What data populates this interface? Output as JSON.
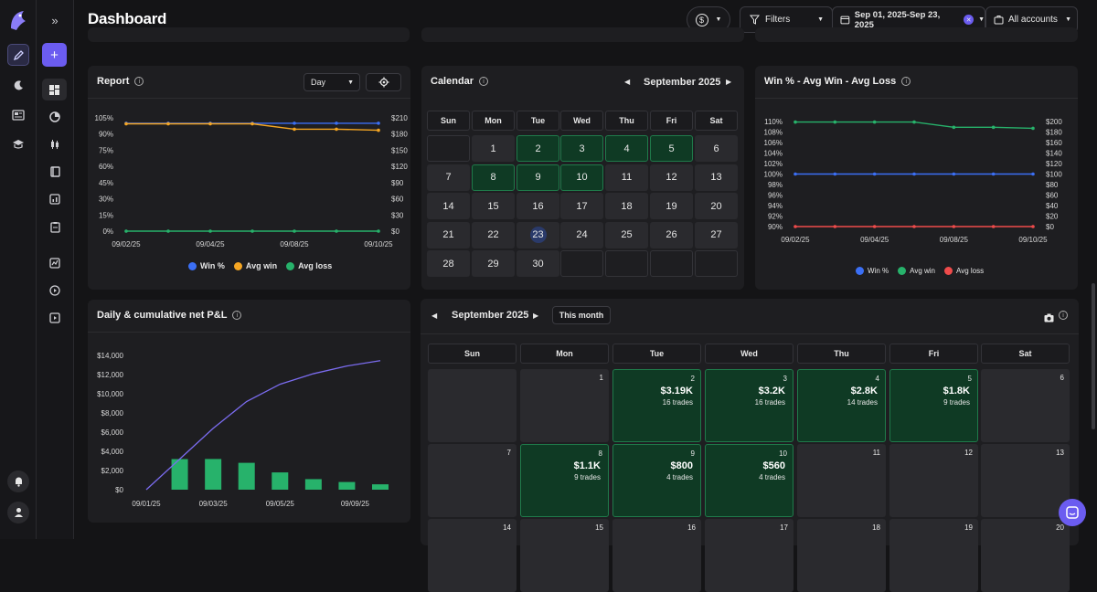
{
  "header": {
    "title": "Dashboard"
  },
  "toolbar": {
    "filters_label": "Filters",
    "date_range": "Sep 01, 2025-Sep 23, 2025",
    "accounts_label": "All accounts"
  },
  "report": {
    "title": "Report",
    "period": "Day",
    "legend": [
      "Win %",
      "Avg win",
      "Avg loss"
    ]
  },
  "calendar_small": {
    "title": "Calendar",
    "month": "September 2025",
    "weekdays": [
      "Sun",
      "Mon",
      "Tue",
      "Wed",
      "Thu",
      "Fri",
      "Sat"
    ],
    "days": [
      "",
      "1",
      "2",
      "3",
      "4",
      "5",
      "6",
      "7",
      "8",
      "9",
      "10",
      "11",
      "12",
      "13",
      "14",
      "15",
      "16",
      "17",
      "18",
      "19",
      "20",
      "21",
      "22",
      "23",
      "24",
      "25",
      "26",
      "27",
      "28",
      "29",
      "30",
      "",
      "",
      "",
      ""
    ],
    "win_days": [
      "2",
      "3",
      "4",
      "5",
      "8",
      "9",
      "10"
    ],
    "today": "23"
  },
  "winrate": {
    "title": "Win % - Avg Win - Avg Loss",
    "legend": [
      "Win %",
      "Avg win",
      "Avg loss"
    ]
  },
  "pnl": {
    "title": "Daily & cumulative net P&L"
  },
  "calendar_big": {
    "month": "September 2025",
    "this_month_label": "This month",
    "weekdays": [
      "Sun",
      "Mon",
      "Tue",
      "Wed",
      "Thu",
      "Fri",
      "Sat"
    ],
    "rows": [
      [
        {
          "d": ""
        },
        {
          "d": "1"
        },
        {
          "d": "2",
          "amt": "$3.19K",
          "tr": "16 trades"
        },
        {
          "d": "3",
          "amt": "$3.2K",
          "tr": "16 trades"
        },
        {
          "d": "4",
          "amt": "$2.8K",
          "tr": "14 trades"
        },
        {
          "d": "5",
          "amt": "$1.8K",
          "tr": "9 trades"
        },
        {
          "d": "6"
        }
      ],
      [
        {
          "d": "7"
        },
        {
          "d": "8",
          "amt": "$1.1K",
          "tr": "9 trades"
        },
        {
          "d": "9",
          "amt": "$800",
          "tr": "4 trades"
        },
        {
          "d": "10",
          "amt": "$560",
          "tr": "4 trades"
        },
        {
          "d": "11"
        },
        {
          "d": "12"
        },
        {
          "d": "13"
        }
      ],
      [
        {
          "d": "14"
        },
        {
          "d": "15"
        },
        {
          "d": "16"
        },
        {
          "d": "17"
        },
        {
          "d": "18"
        },
        {
          "d": "19"
        },
        {
          "d": "20"
        }
      ]
    ]
  },
  "chart_data": [
    {
      "type": "line",
      "title": "Report",
      "x": [
        "09/02/25",
        "09/03/25",
        "09/04/25",
        "09/05/25",
        "09/08/25",
        "09/09/25",
        "09/10/25"
      ],
      "xticks": [
        "09/02/25",
        "09/04/25",
        "09/08/25",
        "09/10/25"
      ],
      "y_left_ticks": [
        "0%",
        "15%",
        "30%",
        "45%",
        "60%",
        "75%",
        "90%",
        "105%"
      ],
      "y_right_ticks": [
        "$0",
        "$30",
        "$60",
        "$90",
        "$120",
        "$150",
        "$180",
        "$210"
      ],
      "ylim_left": [
        0,
        105
      ],
      "ylim_right": [
        0,
        210
      ],
      "series": [
        {
          "name": "Win %",
          "color": "#3b6ff5",
          "axis": "left",
          "values": [
            100,
            100,
            100,
            100,
            100,
            100,
            100
          ]
        },
        {
          "name": "Avg win",
          "color": "#f5a623",
          "axis": "right",
          "values": [
            199,
            199,
            199,
            199,
            189,
            189,
            187
          ]
        },
        {
          "name": "Avg loss",
          "color": "#27b26b",
          "axis": "left",
          "values": [
            0,
            0,
            0,
            0,
            0,
            0,
            0
          ]
        }
      ]
    },
    {
      "type": "line",
      "title": "Win % - Avg Win - Avg Loss",
      "x": [
        "09/02/25",
        "09/03/25",
        "09/04/25",
        "09/05/25",
        "09/08/25",
        "09/09/25",
        "09/10/25"
      ],
      "xticks": [
        "09/02/25",
        "09/04/25",
        "09/08/25",
        "09/10/25"
      ],
      "y_left_ticks": [
        "90%",
        "92%",
        "94%",
        "96%",
        "98%",
        "100%",
        "102%",
        "104%",
        "106%",
        "108%",
        "110%"
      ],
      "y_right_ticks": [
        "$0",
        "$20",
        "$40",
        "$60",
        "$80",
        "$100",
        "$120",
        "$140",
        "$160",
        "$180",
        "$200"
      ],
      "ylim_left": [
        90,
        110
      ],
      "ylim_right": [
        0,
        200
      ],
      "series": [
        {
          "name": "Win %",
          "color": "#3b6ff5",
          "axis": "left",
          "values": [
            100,
            100,
            100,
            100,
            100,
            100,
            100
          ]
        },
        {
          "name": "Avg win",
          "color": "#27b26b",
          "axis": "right",
          "values": [
            199,
            199,
            199,
            199,
            189,
            189,
            187
          ]
        },
        {
          "name": "Avg loss",
          "color": "#ef4b4b",
          "axis": "right",
          "values": [
            0,
            0,
            0,
            0,
            0,
            0,
            0
          ]
        }
      ]
    },
    {
      "type": "bar",
      "title": "Daily & cumulative net P&L",
      "categories": [
        "09/01/25",
        "09/02/25",
        "09/03/25",
        "09/04/25",
        "09/05/25",
        "09/08/25",
        "09/09/25",
        "09/10/25"
      ],
      "xticks": [
        "09/01/25",
        "09/03/25",
        "09/05/25",
        "09/09/25"
      ],
      "y_ticks": [
        "$0",
        "$2,000",
        "$4,000",
        "$6,000",
        "$8,000",
        "$10,000",
        "$12,000",
        "$14,000"
      ],
      "ylim": [
        0,
        14000
      ],
      "bars": [
        null,
        3190,
        3200,
        2800,
        1800,
        1100,
        800,
        560
      ],
      "cumulative": [
        0,
        3190,
        6390,
        9190,
        10990,
        12090,
        12890,
        13450
      ],
      "bar_color": "#27b26b",
      "line_color": "#7b6cf0"
    }
  ]
}
